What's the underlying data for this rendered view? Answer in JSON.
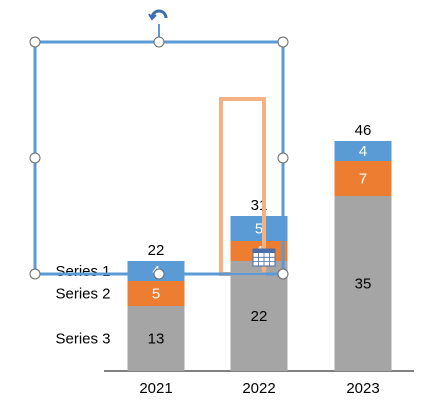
{
  "chart_data": {
    "type": "bar",
    "stacked": true,
    "categories": [
      "2021",
      "2022",
      "2023"
    ],
    "series": [
      {
        "name": "Series 3",
        "values": [
          13,
          22,
          35
        ],
        "color": "#A5A5A5"
      },
      {
        "name": "Series 2",
        "values": [
          5,
          4,
          7
        ],
        "color": "#ED7D31"
      },
      {
        "name": "Series 1",
        "values": [
          4,
          5,
          4
        ],
        "color": "#5B9BD5"
      }
    ],
    "totals": [
      22,
      31,
      46
    ],
    "ylim": [
      0,
      52
    ],
    "grid": false,
    "legend": "inline-left-of-first-bar"
  },
  "colors": {
    "selection": "#5B9BD5",
    "highlight": "#F4B183",
    "handle_fill": "#ffffff",
    "handle_stroke": "#6b6b6b",
    "axis": "#000000"
  },
  "icons": {
    "rotate_handle": "rotate-handle-icon",
    "table_icon": "table-grid-icon"
  }
}
